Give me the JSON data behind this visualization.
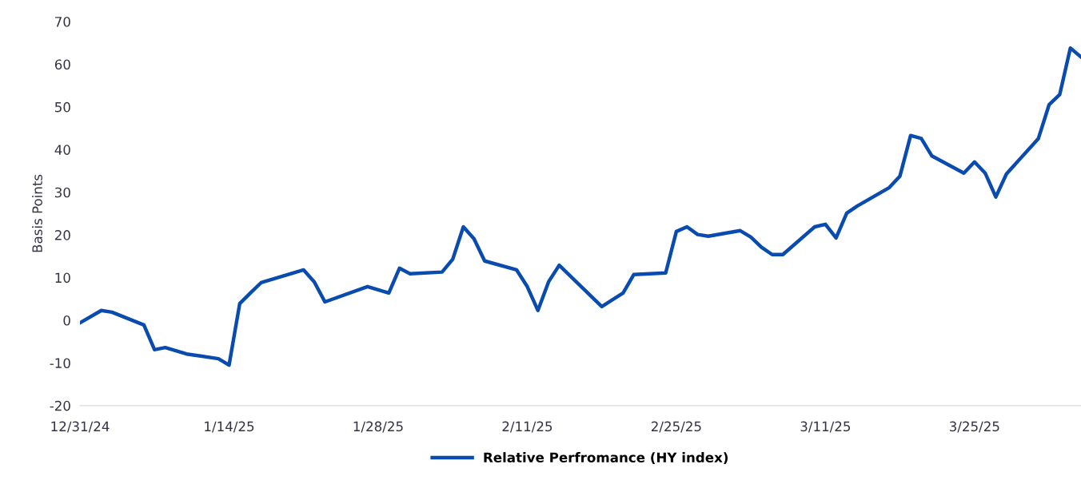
{
  "chart_data": {
    "type": "line",
    "ylabel": "Basis Points",
    "x": [
      "2024-12-31",
      "2025-01-02",
      "2025-01-03",
      "2025-01-06",
      "2025-01-07",
      "2025-01-08",
      "2025-01-10",
      "2025-01-13",
      "2025-01-14",
      "2025-01-15",
      "2025-01-16",
      "2025-01-17",
      "2025-01-21",
      "2025-01-22",
      "2025-01-23",
      "2025-01-27",
      "2025-01-29",
      "2025-01-30",
      "2025-01-31",
      "2025-02-03",
      "2025-02-04",
      "2025-02-05",
      "2025-02-06",
      "2025-02-07",
      "2025-02-10",
      "2025-02-11",
      "2025-02-12",
      "2025-02-13",
      "2025-02-14",
      "2025-02-18",
      "2025-02-20",
      "2025-02-21",
      "2025-02-24",
      "2025-02-25",
      "2025-02-26",
      "2025-02-27",
      "2025-02-28",
      "2025-03-03",
      "2025-03-04",
      "2025-03-05",
      "2025-03-06",
      "2025-03-07",
      "2025-03-10",
      "2025-03-11",
      "2025-03-12",
      "2025-03-13",
      "2025-03-14",
      "2025-03-17",
      "2025-03-18",
      "2025-03-19",
      "2025-03-20",
      "2025-03-21",
      "2025-03-24",
      "2025-03-25",
      "2025-03-26",
      "2025-03-27",
      "2025-03-28",
      "2025-03-31",
      "2025-04-01",
      "2025-04-02",
      "2025-04-03",
      "2025-04-04"
    ],
    "series": [
      {
        "name": "Relative Perfromance (HY index)",
        "color": "#0a4bb0",
        "values": [
          -0.6,
          2.3,
          1.9,
          -1.1,
          -6.9,
          -6.4,
          -7.9,
          -9.0,
          -10.5,
          3.9,
          6.4,
          8.8,
          11.8,
          9.0,
          4.3,
          7.9,
          6.4,
          12.2,
          10.9,
          11.3,
          14.3,
          21.9,
          19.1,
          13.9,
          11.8,
          7.9,
          2.3,
          9.0,
          12.9,
          3.2,
          6.4,
          10.7,
          11.1,
          20.8,
          21.9,
          20.1,
          19.7,
          21.0,
          19.5,
          17.1,
          15.4,
          15.4,
          21.9,
          22.5,
          19.3,
          25.1,
          26.8,
          31.1,
          33.8,
          43.3,
          42.6,
          38.5,
          34.5,
          37.1,
          34.5,
          28.9,
          34.3,
          42.6,
          50.5,
          52.9,
          63.8,
          61.7
        ]
      }
    ],
    "xticks": [
      {
        "value": "2024-12-31",
        "label": "12/31/24"
      },
      {
        "value": "2025-01-14",
        "label": "1/14/25"
      },
      {
        "value": "2025-01-28",
        "label": "1/28/25"
      },
      {
        "value": "2025-02-11",
        "label": "2/11/25"
      },
      {
        "value": "2025-02-25",
        "label": "2/25/25"
      },
      {
        "value": "2025-03-11",
        "label": "3/11/25"
      },
      {
        "value": "2025-03-25",
        "label": "3/25/25"
      }
    ],
    "xlim": [
      "2024-12-31",
      "2025-04-04"
    ],
    "ylim": [
      -20,
      70
    ],
    "yticks": [
      -20,
      -10,
      0,
      10,
      20,
      30,
      40,
      50,
      60,
      70
    ],
    "grid": false,
    "legend": "bottom",
    "marker": "none",
    "line_style": "solid"
  }
}
